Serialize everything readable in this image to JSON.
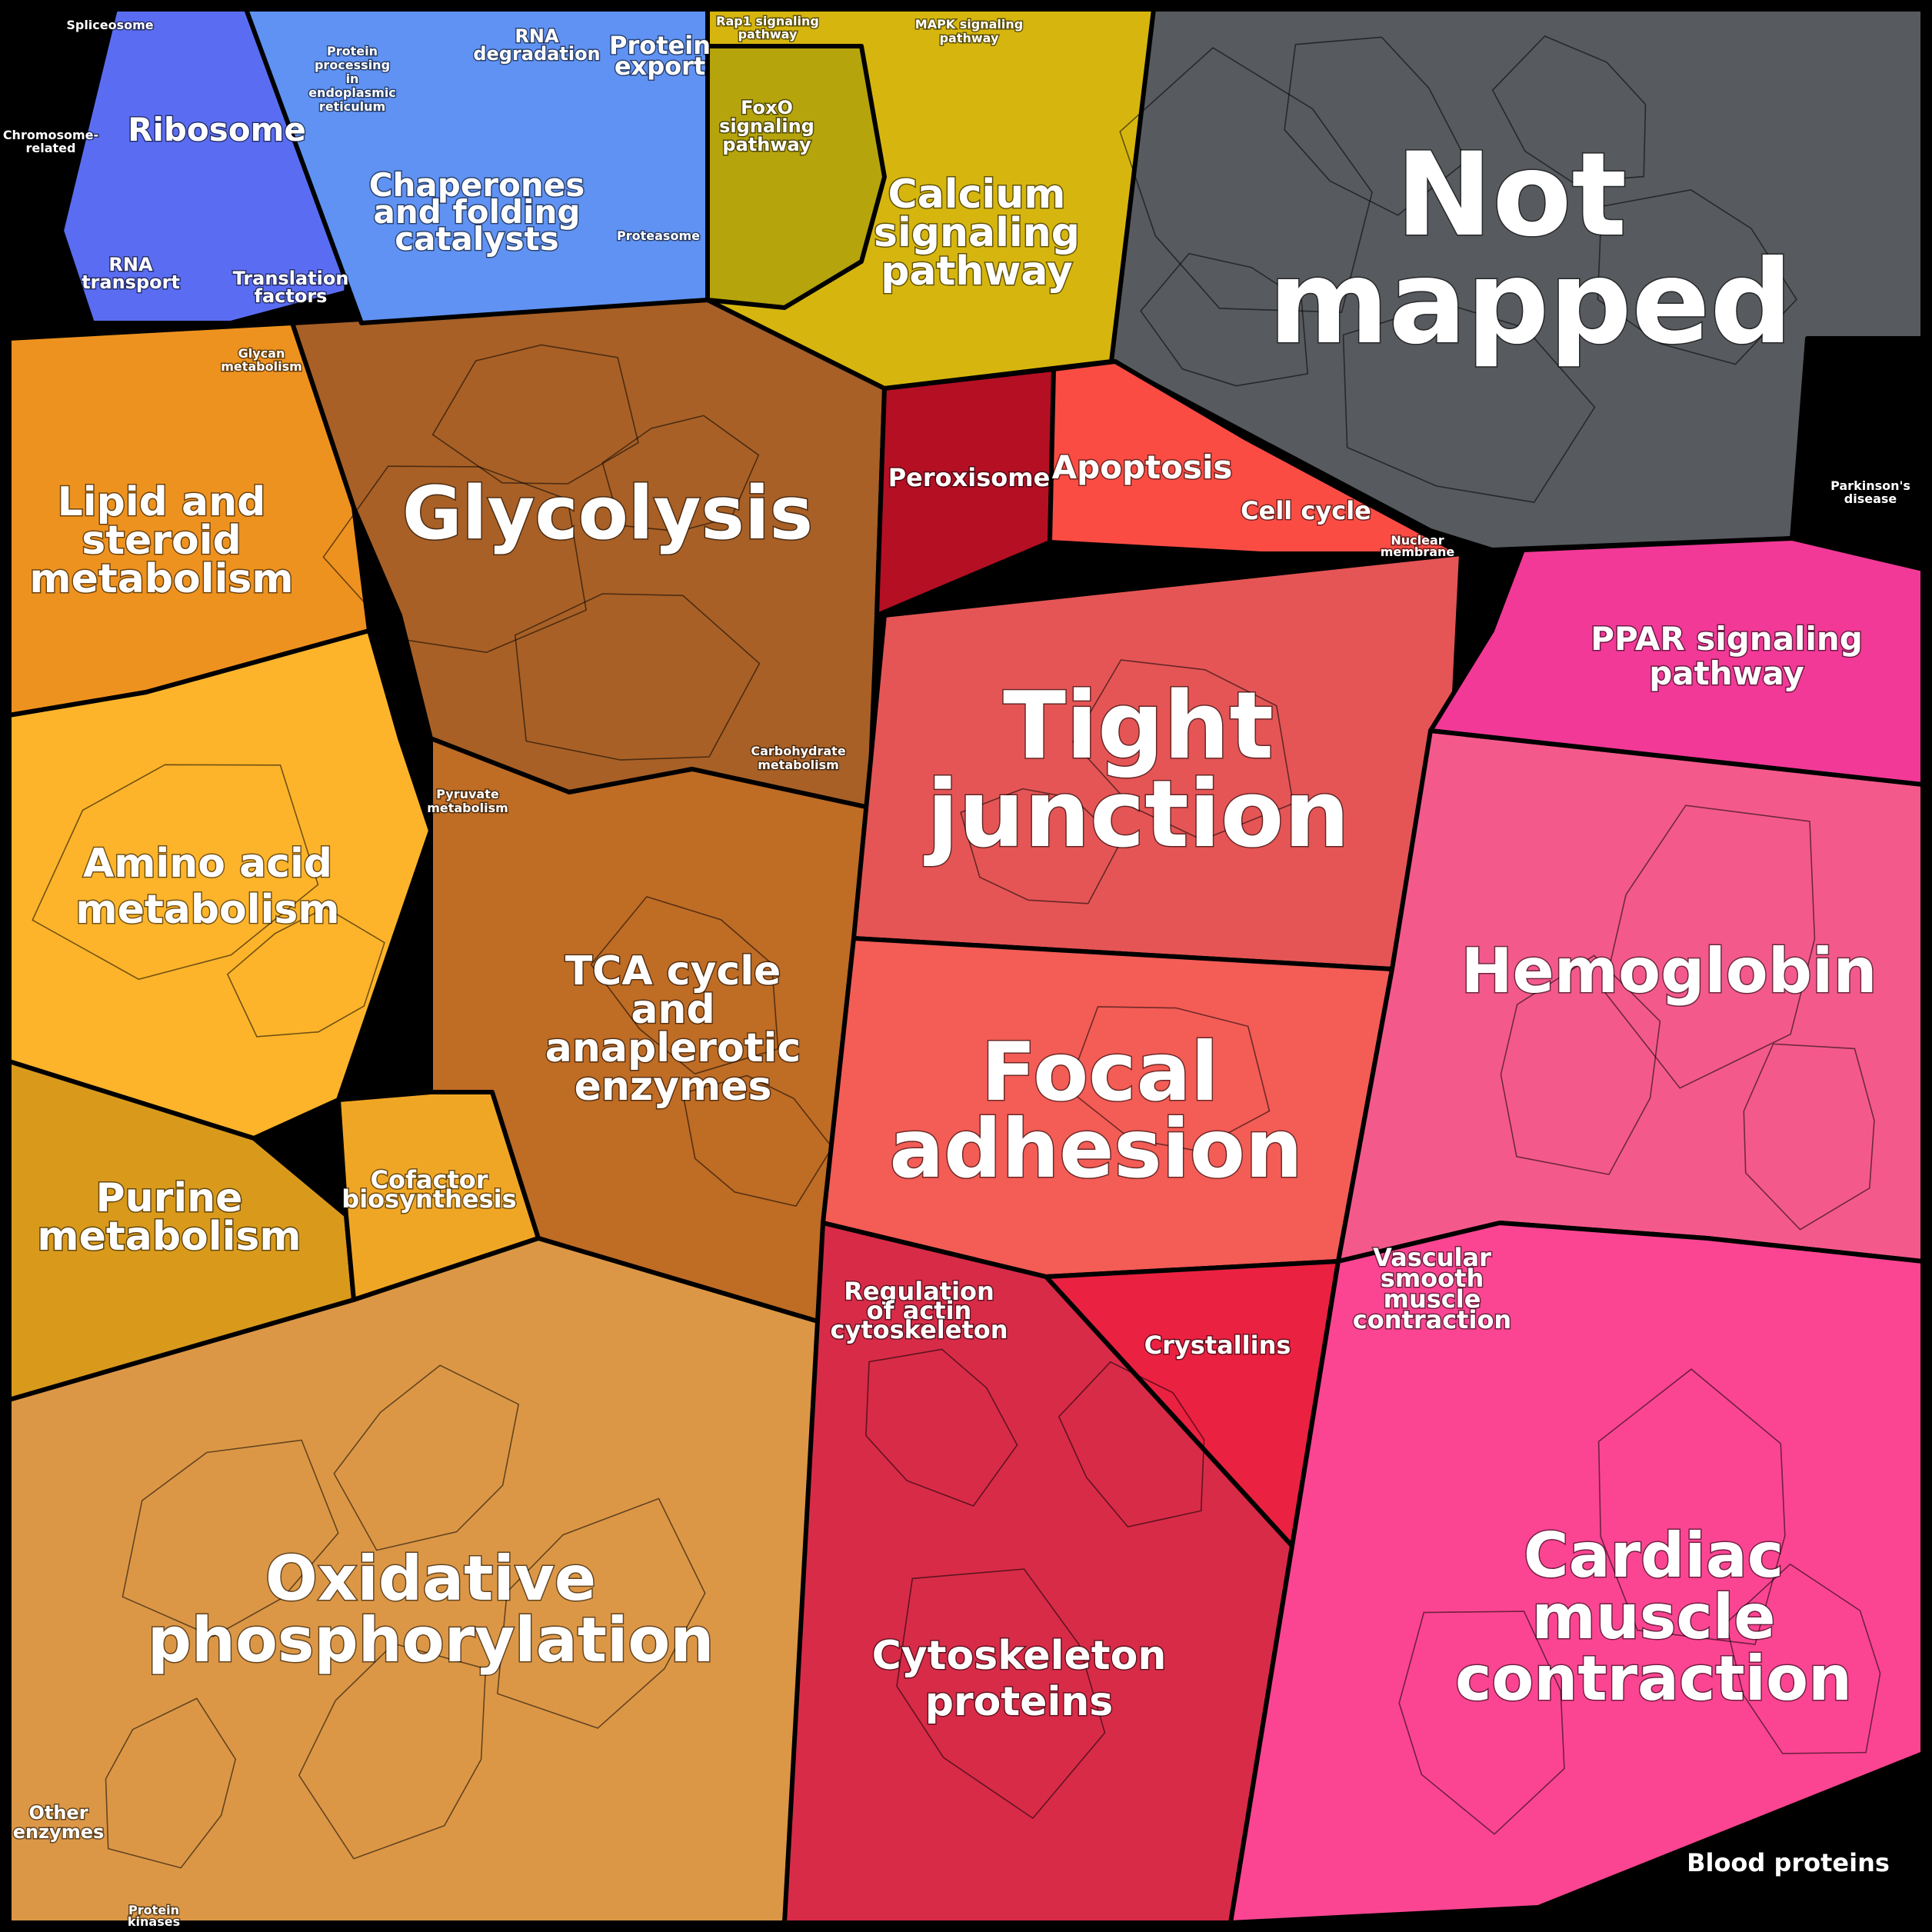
{
  "diagram": {
    "type": "voronoi-treemap",
    "regions": [
      {
        "id": "not-mapped",
        "label": "Not mapped",
        "color": "#575a5e"
      },
      {
        "id": "glycolysis",
        "label": "Glycolysis",
        "color": "#a86026"
      },
      {
        "id": "lipid",
        "label": "Lipid and steroid metabolism",
        "color": "#ee921f"
      },
      {
        "id": "amino",
        "label": "Amino acid metabolism",
        "color": "#fdb42a"
      },
      {
        "id": "purine",
        "label": "Purine metabolism",
        "color": "#d99a1c"
      },
      {
        "id": "cofactor",
        "label": "Cofactor biosynthesis",
        "color": "#f0a625"
      },
      {
        "id": "tca",
        "label": "TCA cycle and anaplerotic enzymes",
        "color": "#bf6c25"
      },
      {
        "id": "oxphos",
        "label": "Oxidative phosphorylation",
        "color": "#dc9746"
      },
      {
        "id": "calcium",
        "label": "Calcium signaling pathway",
        "color": "#d6b60e"
      },
      {
        "id": "foxo",
        "label": "FoxO signaling pathway",
        "color": "#b5a40c"
      },
      {
        "id": "tight",
        "label": "Tight junction",
        "color": "#e55555"
      },
      {
        "id": "focal",
        "label": "Focal adhesion",
        "color": "#f45c56"
      },
      {
        "id": "crystallins",
        "label": "Crystallins",
        "color": "#eb2141"
      },
      {
        "id": "cytoskel",
        "label": "Cytoskeleton proteins",
        "color": "#d82b48"
      },
      {
        "id": "hemoglobin",
        "label": "Hemoglobin",
        "color": "#f4598c"
      },
      {
        "id": "cardiac",
        "label": "Cardiac muscle contraction",
        "color": "#fb4592"
      },
      {
        "id": "ppar",
        "label": "PPAR signaling pathway",
        "color": "#f23997"
      },
      {
        "id": "peroxisome",
        "label": "Peroxisome",
        "color": "#b50f24"
      },
      {
        "id": "apoptosis",
        "label": "Apoptosis",
        "color": "#fb4c44"
      },
      {
        "id": "ribosome",
        "label": "Ribosome",
        "color": "#5a6df2"
      },
      {
        "id": "chaperones",
        "label": "Chaperones and folding catalysts",
        "color": "#5f92f3"
      }
    ],
    "labels": [
      {
        "text": "Not",
        "size": "xxl"
      },
      {
        "text": "mapped",
        "size": "xxl"
      },
      {
        "text": "Glycolysis",
        "size": "xl"
      },
      {
        "text": "Tight",
        "size": "xxl-r"
      },
      {
        "text": "junction",
        "size": "xxl-r"
      },
      {
        "text": "Focal",
        "size": "xl2"
      },
      {
        "text": "adhesion",
        "size": "xl2"
      },
      {
        "text": "Hemoglobin",
        "size": "l"
      },
      {
        "text": "Cardiac",
        "size": "l"
      },
      {
        "text": "muscle",
        "size": "l"
      },
      {
        "text": "contraction",
        "size": "l"
      },
      {
        "text": "Oxidative",
        "size": "l"
      },
      {
        "text": "phosphorylation",
        "size": "l"
      },
      {
        "text": "TCA cycle",
        "size": "m"
      },
      {
        "text": "and",
        "size": "m"
      },
      {
        "text": "anaplerotic",
        "size": "m"
      },
      {
        "text": "enzymes",
        "size": "m"
      },
      {
        "text": "Amino acid",
        "size": "m"
      },
      {
        "text": "metabolism",
        "size": "m"
      },
      {
        "text": "Lipid and",
        "size": "m"
      },
      {
        "text": "steroid",
        "size": "m"
      },
      {
        "text": "metabolism",
        "size": "m"
      },
      {
        "text": "Purine",
        "size": "m"
      },
      {
        "text": "metabolism",
        "size": "m"
      },
      {
        "text": "Calcium",
        "size": "m"
      },
      {
        "text": "signaling",
        "size": "m"
      },
      {
        "text": "pathway",
        "size": "m"
      },
      {
        "text": "Cytoskeleton",
        "size": "m"
      },
      {
        "text": "proteins",
        "size": "m"
      },
      {
        "text": "PPAR signaling",
        "size": "s"
      },
      {
        "text": "pathway",
        "size": "s"
      },
      {
        "text": "Chaperones",
        "size": "s"
      },
      {
        "text": "and folding",
        "size": "s"
      },
      {
        "text": "catalysts",
        "size": "s"
      },
      {
        "text": "Ribosome",
        "size": "s"
      },
      {
        "text": "Peroxisome",
        "size": "xs"
      },
      {
        "text": "Apoptosis",
        "size": "s"
      },
      {
        "text": "Cell cycle",
        "size": "xs"
      },
      {
        "text": "Crystallins",
        "size": "xs"
      },
      {
        "text": "Regulation",
        "size": "xs"
      },
      {
        "text": "of actin",
        "size": "xs"
      },
      {
        "text": "cytoskeleton",
        "size": "xs"
      },
      {
        "text": "Vascular",
        "size": "xs"
      },
      {
        "text": "smooth",
        "size": "xs"
      },
      {
        "text": "muscle",
        "size": "xs"
      },
      {
        "text": "contraction",
        "size": "xs"
      },
      {
        "text": "Blood proteins",
        "size": "xs"
      },
      {
        "text": "Cofactor",
        "size": "xs"
      },
      {
        "text": "biosynthesis",
        "size": "xs"
      },
      {
        "text": "Protein",
        "size": "xs"
      },
      {
        "text": "export",
        "size": "xs"
      },
      {
        "text": "RNA",
        "size": "xxs"
      },
      {
        "text": "degradation",
        "size": "xxs"
      },
      {
        "text": "RNA",
        "size": "xxs"
      },
      {
        "text": "transport",
        "size": "xxs"
      },
      {
        "text": "Translation",
        "size": "xxs"
      },
      {
        "text": "factors",
        "size": "xxs"
      },
      {
        "text": "FoxO",
        "size": "xxs"
      },
      {
        "text": "signaling",
        "size": "xxs"
      },
      {
        "text": "pathway",
        "size": "xxs"
      },
      {
        "text": "Other",
        "size": "xxs"
      },
      {
        "text": "enzymes",
        "size": "xxs"
      },
      {
        "text": "Carbohydrate",
        "size": "xxxs"
      },
      {
        "text": "metabolism",
        "size": "xxxs"
      },
      {
        "text": "Pyruvate",
        "size": "xxxs"
      },
      {
        "text": "metabolism",
        "size": "xxxs"
      },
      {
        "text": "MAPK signaling",
        "size": "xxxs"
      },
      {
        "text": "pathway",
        "size": "xxxs"
      },
      {
        "text": "Rap1 signaling",
        "size": "xxxs"
      },
      {
        "text": "pathway",
        "size": "xxxs"
      },
      {
        "text": "Spliceosome",
        "size": "xxxs"
      },
      {
        "text": "Chromosome-",
        "size": "xxxs"
      },
      {
        "text": "related",
        "size": "xxxs"
      },
      {
        "text": "Protein",
        "size": "xxxs"
      },
      {
        "text": "processing",
        "size": "xxxs"
      },
      {
        "text": "in",
        "size": "xxxs"
      },
      {
        "text": "endoplasmic",
        "size": "xxxs"
      },
      {
        "text": "reticulum",
        "size": "xxxs"
      },
      {
        "text": "Proteasome",
        "size": "xxxs"
      },
      {
        "text": "Nuclear",
        "size": "xxxs"
      },
      {
        "text": "membrane",
        "size": "xxxs"
      },
      {
        "text": "Parkinson's",
        "size": "xxxs"
      },
      {
        "text": "disease",
        "size": "xxxs"
      },
      {
        "text": "Glycan",
        "size": "xxxs"
      },
      {
        "text": "metabolism",
        "size": "xxxs"
      },
      {
        "text": "Protein",
        "size": "xxxs"
      },
      {
        "text": "kinases",
        "size": "xxxs"
      }
    ]
  }
}
